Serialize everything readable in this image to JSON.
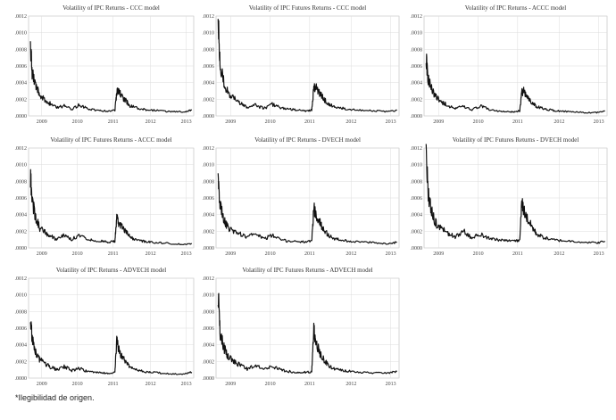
{
  "footnote": "*Ilegibilidad de origen.",
  "chart_data": [
    {
      "type": "line",
      "title": "Volatility of IPC Returns - CCC model",
      "x_ticks": [
        "2009",
        "2010",
        "2011",
        "2012",
        "2013"
      ],
      "y_ticks": [
        ".0000",
        ".0002",
        ".0004",
        ".0006",
        ".0008",
        ".0010",
        ".0012"
      ],
      "ylim": [
        0,
        0.0012
      ],
      "series": [
        {
          "x": [
            2008.8,
            2008.85,
            2008.95,
            2009.05,
            2009.2,
            2009.35,
            2009.5,
            2009.7,
            2009.9,
            2010.1,
            2010.3,
            2010.5,
            2010.7,
            2010.9,
            2011.05,
            2011.1,
            2011.15,
            2011.25,
            2011.35,
            2011.45,
            2011.6,
            2011.8,
            2012.0,
            2012.3,
            2012.6,
            2012.9,
            2013.1
          ],
          "y": [
            0.00082,
            0.0005,
            0.00035,
            0.00025,
            0.00018,
            0.00014,
            0.0001,
            0.00012,
            8e-05,
            0.00013,
            9e-05,
            7e-05,
            6e-05,
            6e-05,
            7e-05,
            0.00028,
            0.0003,
            0.00022,
            0.00018,
            0.00012,
            0.0001,
            8e-05,
            7e-05,
            6e-05,
            5e-05,
            5e-05,
            7e-05
          ]
        }
      ]
    },
    {
      "type": "line",
      "title": "Volatility of IPC Futures Returns - CCC model",
      "x_ticks": [
        "2009",
        "2010",
        "2011",
        "2012",
        "2013"
      ],
      "y_ticks": [
        ".0000",
        ".0002",
        ".0004",
        ".0006",
        ".0008",
        ".0010",
        ".0012"
      ],
      "ylim": [
        0,
        0.0012
      ],
      "series": [
        {
          "x": [
            2008.8,
            2008.85,
            2008.95,
            2009.05,
            2009.2,
            2009.35,
            2009.5,
            2009.7,
            2009.9,
            2010.1,
            2010.3,
            2010.5,
            2010.7,
            2010.9,
            2011.05,
            2011.1,
            2011.15,
            2011.25,
            2011.35,
            2011.45,
            2011.6,
            2011.8,
            2012.0,
            2012.3,
            2012.6,
            2012.9,
            2013.1
          ],
          "y": [
            0.00115,
            0.0006,
            0.00038,
            0.00027,
            0.0002,
            0.00015,
            0.00011,
            0.00013,
            9e-05,
            0.00014,
            0.0001,
            8e-05,
            7e-05,
            6e-05,
            7e-05,
            0.00033,
            0.00035,
            0.00026,
            0.0002,
            0.00014,
            0.00011,
            9e-05,
            8e-05,
            7e-05,
            6e-05,
            5e-05,
            7e-05
          ]
        }
      ]
    },
    {
      "type": "line",
      "title": "Volatility of IPC Returns - ACCC model",
      "x_ticks": [
        "2009",
        "2010",
        "2011",
        "2012",
        "2013"
      ],
      "y_ticks": [
        ".0000",
        ".0002",
        ".0004",
        ".0006",
        ".0008",
        ".0010",
        ".0012"
      ],
      "ylim": [
        0,
        0.0012
      ],
      "series": [
        {
          "x": [
            2008.8,
            2008.85,
            2008.95,
            2009.05,
            2009.2,
            2009.35,
            2009.5,
            2009.7,
            2009.9,
            2010.1,
            2010.3,
            2010.5,
            2010.7,
            2010.9,
            2011.05,
            2011.1,
            2011.15,
            2011.25,
            2011.35,
            2011.45,
            2011.6,
            2011.8,
            2012.0,
            2012.3,
            2012.6,
            2012.9,
            2013.1
          ],
          "y": [
            0.00068,
            0.00045,
            0.0003,
            0.00022,
            0.00016,
            0.00012,
            9e-05,
            0.00011,
            7e-05,
            0.00012,
            8e-05,
            6e-05,
            5e-05,
            5e-05,
            6e-05,
            0.00028,
            0.0003,
            0.00021,
            0.00016,
            0.00011,
            9e-05,
            7e-05,
            6e-05,
            5e-05,
            4e-05,
            4e-05,
            6e-05
          ]
        }
      ]
    },
    {
      "type": "line",
      "title": "Volatility of IPC Futures Returns - ACCC model",
      "x_ticks": [
        "2009",
        "2010",
        "2011",
        "2012",
        "2013"
      ],
      "y_ticks": [
        ".0000",
        ".0002",
        ".0004",
        ".0006",
        ".0008",
        ".0010",
        ".0012"
      ],
      "ylim": [
        0,
        0.0012
      ],
      "series": [
        {
          "x": [
            2008.8,
            2008.85,
            2008.95,
            2009.05,
            2009.2,
            2009.35,
            2009.5,
            2009.7,
            2009.9,
            2010.1,
            2010.3,
            2010.5,
            2010.7,
            2010.9,
            2011.05,
            2011.1,
            2011.15,
            2011.25,
            2011.35,
            2011.45,
            2011.6,
            2011.8,
            2012.0,
            2012.3,
            2012.6,
            2012.9,
            2013.1
          ],
          "y": [
            0.00085,
            0.00055,
            0.00035,
            0.00024,
            0.00018,
            0.00014,
            0.0001,
            0.00015,
            0.0001,
            0.00016,
            0.00011,
            9e-05,
            8e-05,
            7e-05,
            8e-05,
            0.00036,
            0.0003,
            0.00025,
            0.00019,
            0.00013,
            0.0001,
            8e-05,
            7e-05,
            6e-05,
            5e-05,
            4e-05,
            5e-05
          ]
        }
      ]
    },
    {
      "type": "line",
      "title": "Volatility of IPC Returns - DVECH model",
      "x_ticks": [
        "2009",
        "2010",
        "2011",
        "2012",
        "2013"
      ],
      "y_ticks": [
        ".0000",
        ".0002",
        ".0004",
        ".0006",
        ".0008",
        ".0010",
        ".0012"
      ],
      "ylim": [
        0,
        0.0012
      ],
      "series": [
        {
          "x": [
            2008.8,
            2008.85,
            2008.95,
            2009.05,
            2009.2,
            2009.35,
            2009.5,
            2009.7,
            2009.9,
            2010.1,
            2010.3,
            2010.5,
            2010.7,
            2010.9,
            2011.05,
            2011.1,
            2011.15,
            2011.25,
            2011.35,
            2011.45,
            2011.6,
            2011.8,
            2012.0,
            2012.3,
            2012.6,
            2012.9,
            2013.1
          ],
          "y": [
            0.0008,
            0.0005,
            0.00032,
            0.00024,
            0.0002,
            0.00016,
            0.00012,
            0.00018,
            0.00011,
            0.00015,
            0.0001,
            8e-05,
            8e-05,
            7e-05,
            8e-05,
            0.00048,
            0.0004,
            0.0003,
            0.00022,
            0.00015,
            0.00011,
            9e-05,
            8e-05,
            7e-05,
            6e-05,
            5e-05,
            7e-05
          ]
        }
      ]
    },
    {
      "type": "line",
      "title": "Volatility of IPC Futures Returns - DVECH model",
      "x_ticks": [
        "2009",
        "2010",
        "2011",
        "2012",
        "2013"
      ],
      "y_ticks": [
        ".0000",
        ".0002",
        ".0004",
        ".0006",
        ".0008",
        ".0010",
        ".0012"
      ],
      "ylim": [
        0,
        0.0012
      ],
      "series": [
        {
          "x": [
            2008.8,
            2008.85,
            2008.95,
            2009.05,
            2009.2,
            2009.35,
            2009.5,
            2009.7,
            2009.9,
            2010.1,
            2010.3,
            2010.5,
            2010.7,
            2010.9,
            2011.05,
            2011.1,
            2011.15,
            2011.25,
            2011.35,
            2011.45,
            2011.6,
            2011.8,
            2012.0,
            2012.3,
            2012.6,
            2012.9,
            2013.1
          ],
          "y": [
            0.0012,
            0.00065,
            0.0004,
            0.00028,
            0.00022,
            0.00017,
            0.00013,
            0.0002,
            0.00012,
            0.00017,
            0.00012,
            0.0001,
            9e-05,
            8e-05,
            9e-05,
            0.00055,
            0.00045,
            0.00033,
            0.00025,
            0.00017,
            0.00013,
            0.0001,
            9e-05,
            8e-05,
            7e-05,
            6e-05,
            8e-05
          ]
        }
      ]
    },
    {
      "type": "line",
      "title": "Volatility of IPC Returns - ADVECH model",
      "x_ticks": [
        "2009",
        "2010",
        "2011",
        "2012",
        "2013"
      ],
      "y_ticks": [
        ".0000",
        ".0002",
        ".0004",
        ".0006",
        ".0008",
        ".0010",
        ".0012"
      ],
      "ylim": [
        0,
        0.0012
      ],
      "series": [
        {
          "x": [
            2008.8,
            2008.85,
            2008.95,
            2009.05,
            2009.2,
            2009.35,
            2009.5,
            2009.7,
            2009.9,
            2010.1,
            2010.3,
            2010.5,
            2010.7,
            2010.9,
            2011.05,
            2011.1,
            2011.15,
            2011.25,
            2011.35,
            2011.45,
            2011.6,
            2011.8,
            2012.0,
            2012.3,
            2012.6,
            2012.9,
            2013.1
          ],
          "y": [
            0.0007,
            0.00045,
            0.0003,
            0.00022,
            0.00017,
            0.00013,
            0.0001,
            0.00014,
            9e-05,
            0.00012,
            8e-05,
            7e-05,
            6e-05,
            6e-05,
            7e-05,
            0.00045,
            0.00035,
            0.00025,
            0.00019,
            0.00013,
            0.0001,
            8e-05,
            7e-05,
            6e-05,
            5e-05,
            5e-05,
            7e-05
          ]
        }
      ]
    },
    {
      "type": "line",
      "title": "Volatility of IPC Futures Returns - ADVECH model",
      "x_ticks": [
        "2009",
        "2010",
        "2011",
        "2012",
        "2013"
      ],
      "y_ticks": [
        ".0000",
        ".0002",
        ".0004",
        ".0006",
        ".0008",
        ".0010",
        ".0012"
      ],
      "ylim": [
        0,
        0.0012
      ],
      "series": [
        {
          "x": [
            2008.8,
            2008.85,
            2008.95,
            2009.05,
            2009.2,
            2009.35,
            2009.5,
            2009.7,
            2009.9,
            2010.1,
            2010.3,
            2010.5,
            2010.7,
            2010.9,
            2011.05,
            2011.1,
            2011.15,
            2011.25,
            2011.35,
            2011.45,
            2011.6,
            2011.8,
            2012.0,
            2012.3,
            2012.6,
            2012.9,
            2013.1
          ],
          "y": [
            0.001,
            0.00055,
            0.00035,
            0.00025,
            0.00019,
            0.00015,
            0.00011,
            0.00016,
            0.0001,
            0.00014,
            0.0001,
            8e-05,
            7e-05,
            7e-05,
            8e-05,
            0.00058,
            0.00042,
            0.0003,
            0.00022,
            0.00015,
            0.00011,
            9e-05,
            8e-05,
            7e-05,
            6e-05,
            6e-05,
            8e-05
          ]
        }
      ]
    }
  ]
}
